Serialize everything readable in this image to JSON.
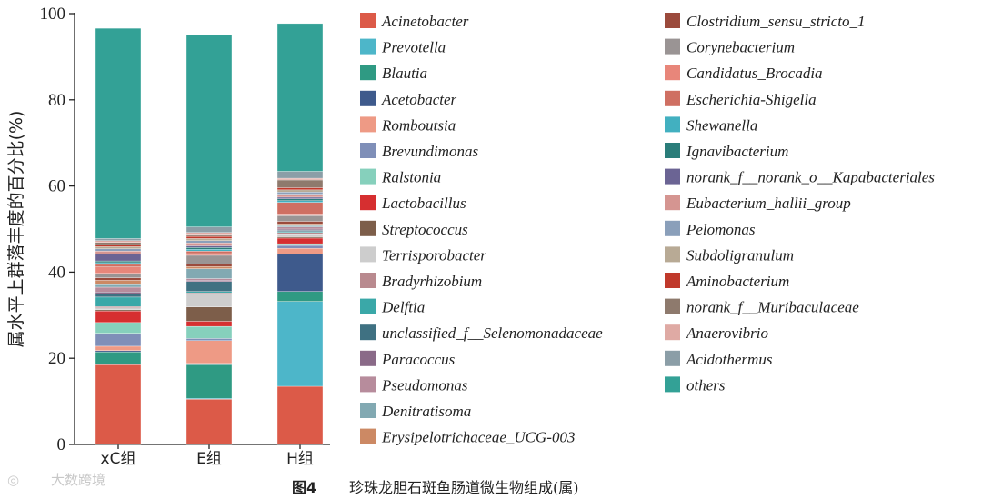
{
  "chart_data": {
    "type": "bar",
    "stacked": true,
    "ylabel": "属水平上群落丰度的百分比(%)",
    "ylim": [
      0,
      100
    ],
    "yticks": [
      "0",
      "20",
      "40",
      "60",
      "80",
      "100"
    ],
    "categories": [
      "xC组",
      "E组",
      "H组"
    ],
    "legend_placement": "right",
    "series": [
      {
        "name": "Acinetobacter",
        "color": "#dc5a48",
        "values": [
          18.5,
          10.5,
          13.5
        ]
      },
      {
        "name": "Prevotella",
        "color": "#4db6c9",
        "values": [
          0.2,
          0.2,
          19.7
        ]
      },
      {
        "name": "Blautia",
        "color": "#2f9a83",
        "values": [
          2.8,
          7.8,
          2.3
        ]
      },
      {
        "name": "Acetobacter",
        "color": "#3e5a8c",
        "values": [
          0.3,
          0.3,
          8.7
        ]
      },
      {
        "name": "Romboutsia",
        "color": "#ee9a85",
        "values": [
          1.0,
          5.3,
          1.3
        ]
      },
      {
        "name": "Brevundimonas",
        "color": "#7f8fb8",
        "values": [
          3.0,
          0.5,
          0.7
        ]
      },
      {
        "name": "Ralstonia",
        "color": "#86d0bc",
        "values": [
          2.5,
          2.8,
          0.4
        ]
      },
      {
        "name": "Lactobacillus",
        "color": "#d62f30",
        "values": [
          2.7,
          1.2,
          1.3
        ]
      },
      {
        "name": "Streptococcus",
        "color": "#7d5e4a",
        "values": [
          0.3,
          3.3,
          0.3
        ]
      },
      {
        "name": "Terrisporobacter",
        "color": "#cdcdcd",
        "values": [
          0.4,
          3.0,
          0.7
        ]
      },
      {
        "name": "Bradyrhizobium",
        "color": "#b98a8f",
        "values": [
          0.3,
          0.3,
          0.3
        ]
      },
      {
        "name": "Delftia",
        "color": "#3aa8a8",
        "values": [
          2.2,
          0.3,
          0.2
        ]
      },
      {
        "name": "unclassified_f__Selenomonadaceae",
        "color": "#3f7182",
        "values": [
          0.7,
          2.3,
          0.3
        ]
      },
      {
        "name": "Paracoccus",
        "color": "#8a6a88",
        "values": [
          0.5,
          0.3,
          0.3
        ]
      },
      {
        "name": "Pseudomonas",
        "color": "#b78c9c",
        "values": [
          1.1,
          0.4,
          0.5
        ]
      },
      {
        "name": "Denitratisoma",
        "color": "#82a9b2",
        "values": [
          0.6,
          2.3,
          0.3
        ]
      },
      {
        "name": "Erysipelotrichaceae_UCG-003",
        "color": "#cc8964",
        "values": [
          1.0,
          0.5,
          0.4
        ]
      },
      {
        "name": "Clostridium_sensu_stricto_1",
        "color": "#9b4a3c",
        "values": [
          0.6,
          0.6,
          0.6
        ]
      },
      {
        "name": "Corynebacterium",
        "color": "#9a9494",
        "values": [
          1.0,
          2.0,
          1.3
        ]
      },
      {
        "name": "Candidatus_Brocadia",
        "color": "#e8867a",
        "values": [
          1.5,
          0.4,
          0.4
        ]
      },
      {
        "name": "Escherichia-Shigella",
        "color": "#cf6f62",
        "values": [
          0.6,
          0.6,
          2.7
        ]
      },
      {
        "name": "Shewanella",
        "color": "#42b0c0",
        "values": [
          0.4,
          0.4,
          0.4
        ]
      },
      {
        "name": "Ignavibacterium",
        "color": "#2a7d7a",
        "values": [
          0.4,
          0.4,
          0.4
        ]
      },
      {
        "name": "norank_f__norank_o__Kapabacteriales",
        "color": "#6b6494",
        "values": [
          1.6,
          0.4,
          0.4
        ]
      },
      {
        "name": "Eubacterium_hallii_group",
        "color": "#d59591",
        "values": [
          0.7,
          0.7,
          0.7
        ]
      },
      {
        "name": "Pelomonas",
        "color": "#8a9fba",
        "values": [
          0.5,
          0.5,
          0.5
        ]
      },
      {
        "name": "Subdoligranulum",
        "color": "#b8aa95",
        "values": [
          0.5,
          0.5,
          0.5
        ]
      },
      {
        "name": "Aminobacterium",
        "color": "#c0392b",
        "values": [
          0.5,
          0.5,
          0.5
        ]
      },
      {
        "name": "norank_f__Muribaculaceae",
        "color": "#8e7a6d",
        "values": [
          0.5,
          0.5,
          1.8
        ]
      },
      {
        "name": "Anaerovibrio",
        "color": "#dfaaa4",
        "values": [
          0.4,
          0.4,
          0.4
        ]
      },
      {
        "name": "Acidothermus",
        "color": "#8b9ea7",
        "values": [
          0.5,
          1.3,
          1.6
        ]
      },
      {
        "name": "others",
        "color": "#33a196",
        "values": [
          48.8,
          44.6,
          34.3
        ]
      }
    ]
  },
  "caption": {
    "label": "图4",
    "text": "珍珠龙胆石斑鱼肠道微生物组成(属)"
  },
  "watermark": "大数跨境"
}
